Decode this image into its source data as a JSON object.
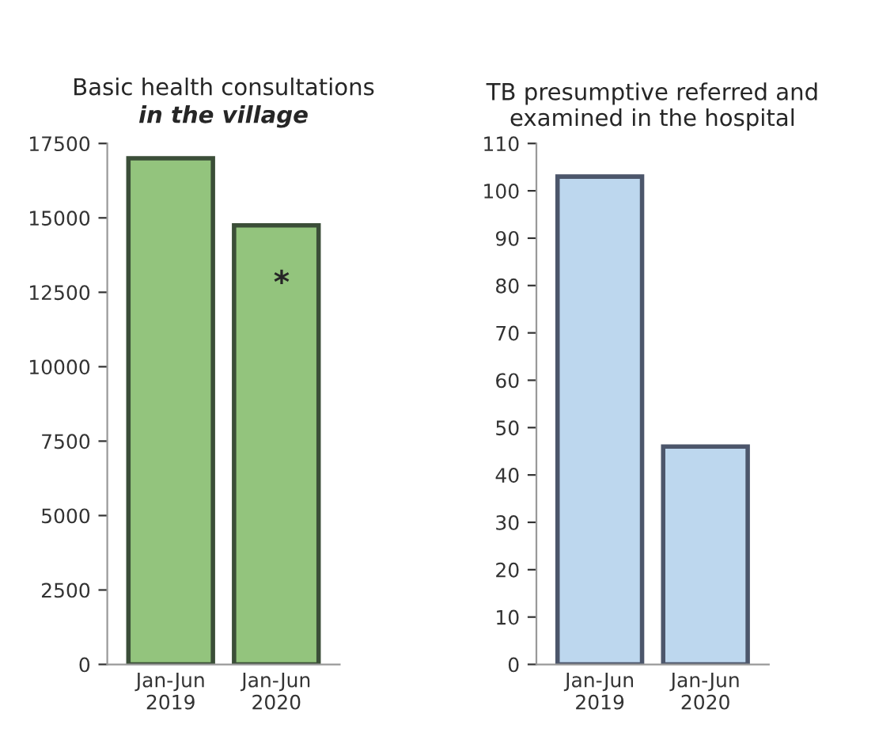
{
  "chart_data": [
    {
      "type": "bar",
      "title": "Basic health consultations",
      "subtitle": "in the village",
      "categories": [
        "Jan-Jun\n2019",
        "Jan-Jun\n2020"
      ],
      "values": [
        17000,
        14750
      ],
      "color": "#93c47d",
      "ylim": [
        0,
        17500
      ],
      "yticks": [
        0,
        2500,
        5000,
        7500,
        10000,
        12500,
        15000,
        17500
      ],
      "grid": false,
      "legend": false,
      "annotations": [
        "*"
      ]
    },
    {
      "type": "bar",
      "title": "TB presumptive referred and\nexamined in the hospital",
      "categories": [
        "Jan-Jun\n2019",
        "Jan-Jun\n2020"
      ],
      "values": [
        103,
        46
      ],
      "color": "#bdd7ee",
      "ylim": [
        0,
        110
      ],
      "yticks": [
        0,
        10,
        20,
        30,
        40,
        50,
        60,
        70,
        80,
        90,
        100,
        110
      ],
      "grid": false,
      "legend": false
    }
  ]
}
